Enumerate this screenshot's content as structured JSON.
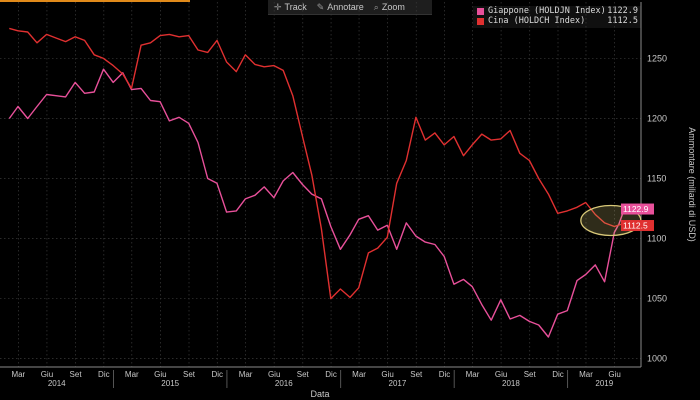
{
  "toolbar": {
    "items": [
      {
        "label": "Track",
        "icon": "crosshair-icon"
      },
      {
        "label": "Annotare",
        "icon": "pencil-icon"
      },
      {
        "label": "Zoom",
        "icon": "magnifier-icon"
      }
    ]
  },
  "legend": [
    {
      "name": "Giappone (HOLDJN Index)",
      "value": "1122.9",
      "color": "#e8509a"
    },
    {
      "name": "Cina (HOLDCH Index)",
      "value": "1112.5",
      "color": "#e03030"
    }
  ],
  "colors": {
    "background": "#000000",
    "grid": "#3a3a3a",
    "axis_text": "#c8c8c8",
    "highlight": "#d8c878"
  },
  "chart_data": {
    "type": "line",
    "xlabel": "Data",
    "ylabel": "Ammontare (miliardi di USD)",
    "ylim": [
      993,
      1297
    ],
    "y_ticks": [
      1000,
      1050,
      1100,
      1150,
      1200,
      1250
    ],
    "x_range": [
      "2014-01-01",
      "2019-08-25"
    ],
    "month_ticks": [
      "Mar",
      "Giu",
      "Set",
      "Dic",
      "Mar",
      "Giu",
      "Set",
      "Dic",
      "Mar",
      "Giu",
      "Set",
      "Dic",
      "Mar",
      "Giu",
      "Set",
      "Dic",
      "Mar",
      "Giu",
      "Set",
      "Dic",
      "Mar",
      "Giu"
    ],
    "year_labels": [
      "2014",
      "2015",
      "2016",
      "2017",
      "2018",
      "2019"
    ],
    "grid": true,
    "legend_position": "top-right",
    "series": [
      {
        "name": "Giappone (HOLDJN Index)",
        "color": "#e8509a",
        "last_value": "1122.9",
        "points": [
          [
            "2014-01-31",
            1200
          ],
          [
            "2014-02-28",
            1210
          ],
          [
            "2014-03-31",
            1200
          ],
          [
            "2014-04-30",
            1210
          ],
          [
            "2014-05-31",
            1220
          ],
          [
            "2014-06-30",
            1219
          ],
          [
            "2014-07-31",
            1218
          ],
          [
            "2014-08-31",
            1230
          ],
          [
            "2014-09-30",
            1221
          ],
          [
            "2014-10-31",
            1222
          ],
          [
            "2014-11-30",
            1241
          ],
          [
            "2014-12-31",
            1230
          ],
          [
            "2015-01-31",
            1238
          ],
          [
            "2015-02-28",
            1224
          ],
          [
            "2015-03-31",
            1225
          ],
          [
            "2015-04-30",
            1215
          ],
          [
            "2015-05-31",
            1214
          ],
          [
            "2015-06-30",
            1198
          ],
          [
            "2015-07-31",
            1201
          ],
          [
            "2015-08-31",
            1196
          ],
          [
            "2015-09-30",
            1180
          ],
          [
            "2015-10-31",
            1150
          ],
          [
            "2015-11-30",
            1146
          ],
          [
            "2015-12-31",
            1122
          ],
          [
            "2016-01-31",
            1123
          ],
          [
            "2016-02-29",
            1133
          ],
          [
            "2016-03-31",
            1136
          ],
          [
            "2016-04-30",
            1143
          ],
          [
            "2016-05-31",
            1134
          ],
          [
            "2016-06-30",
            1148
          ],
          [
            "2016-07-31",
            1155
          ],
          [
            "2016-08-31",
            1145
          ],
          [
            "2016-09-30",
            1137
          ],
          [
            "2016-10-31",
            1133
          ],
          [
            "2016-11-30",
            1110
          ],
          [
            "2016-12-31",
            1091
          ],
          [
            "2017-01-31",
            1103
          ],
          [
            "2017-02-28",
            1116
          ],
          [
            "2017-03-31",
            1119
          ],
          [
            "2017-04-30",
            1107
          ],
          [
            "2017-05-31",
            1111
          ],
          [
            "2017-06-30",
            1091
          ],
          [
            "2017-07-31",
            1113
          ],
          [
            "2017-08-31",
            1102
          ],
          [
            "2017-09-30",
            1097
          ],
          [
            "2017-10-31",
            1095
          ],
          [
            "2017-11-30",
            1085
          ],
          [
            "2017-12-31",
            1062
          ],
          [
            "2018-01-31",
            1066
          ],
          [
            "2018-02-28",
            1060
          ],
          [
            "2018-03-31",
            1045
          ],
          [
            "2018-04-30",
            1032
          ],
          [
            "2018-05-31",
            1049
          ],
          [
            "2018-06-30",
            1033
          ],
          [
            "2018-07-31",
            1036
          ],
          [
            "2018-08-31",
            1031
          ],
          [
            "2018-09-30",
            1028
          ],
          [
            "2018-10-31",
            1018
          ],
          [
            "2018-11-30",
            1037
          ],
          [
            "2018-12-31",
            1040
          ],
          [
            "2019-01-31",
            1065
          ],
          [
            "2019-02-28",
            1070
          ],
          [
            "2019-03-31",
            1078
          ],
          [
            "2019-04-30",
            1064
          ],
          [
            "2019-05-31",
            1105
          ],
          [
            "2019-06-15",
            1112
          ],
          [
            "2019-06-30",
            1122.9
          ]
        ]
      },
      {
        "name": "Cina (HOLDCH Index)",
        "color": "#e03030",
        "last_value": "1112.5",
        "points": [
          [
            "2014-01-31",
            1275
          ],
          [
            "2014-02-28",
            1273
          ],
          [
            "2014-03-31",
            1272
          ],
          [
            "2014-04-30",
            1263
          ],
          [
            "2014-05-31",
            1270
          ],
          [
            "2014-06-30",
            1267
          ],
          [
            "2014-07-31",
            1264
          ],
          [
            "2014-08-31",
            1268
          ],
          [
            "2014-09-30",
            1265
          ],
          [
            "2014-10-31",
            1253
          ],
          [
            "2014-11-30",
            1250
          ],
          [
            "2014-12-31",
            1244
          ],
          [
            "2015-01-31",
            1237
          ],
          [
            "2015-02-28",
            1225
          ],
          [
            "2015-03-31",
            1261
          ],
          [
            "2015-04-30",
            1263
          ],
          [
            "2015-05-31",
            1269
          ],
          [
            "2015-06-30",
            1270
          ],
          [
            "2015-07-31",
            1268
          ],
          [
            "2015-08-31",
            1269
          ],
          [
            "2015-09-30",
            1257
          ],
          [
            "2015-10-31",
            1255
          ],
          [
            "2015-11-30",
            1265
          ],
          [
            "2015-12-31",
            1247
          ],
          [
            "2016-01-31",
            1239
          ],
          [
            "2016-02-29",
            1253
          ],
          [
            "2016-03-31",
            1245
          ],
          [
            "2016-04-30",
            1243
          ],
          [
            "2016-05-31",
            1244
          ],
          [
            "2016-06-30",
            1240
          ],
          [
            "2016-07-31",
            1219
          ],
          [
            "2016-08-31",
            1185
          ],
          [
            "2016-09-30",
            1153
          ],
          [
            "2016-10-31",
            1108
          ],
          [
            "2016-11-30",
            1050
          ],
          [
            "2016-12-31",
            1058
          ],
          [
            "2017-01-31",
            1051
          ],
          [
            "2017-02-28",
            1059
          ],
          [
            "2017-03-31",
            1088
          ],
          [
            "2017-04-30",
            1092
          ],
          [
            "2017-05-31",
            1101
          ],
          [
            "2017-06-30",
            1146
          ],
          [
            "2017-07-31",
            1165
          ],
          [
            "2017-08-31",
            1201
          ],
          [
            "2017-09-30",
            1182
          ],
          [
            "2017-10-31",
            1188
          ],
          [
            "2017-11-30",
            1178
          ],
          [
            "2017-12-31",
            1185
          ],
          [
            "2018-01-31",
            1169
          ],
          [
            "2018-02-28",
            1178
          ],
          [
            "2018-03-31",
            1187
          ],
          [
            "2018-04-30",
            1182
          ],
          [
            "2018-05-31",
            1183
          ],
          [
            "2018-06-30",
            1190
          ],
          [
            "2018-07-31",
            1171
          ],
          [
            "2018-08-31",
            1165
          ],
          [
            "2018-09-30",
            1150
          ],
          [
            "2018-10-31",
            1137
          ],
          [
            "2018-11-30",
            1121
          ],
          [
            "2018-12-31",
            1123
          ],
          [
            "2019-01-31",
            1126
          ],
          [
            "2019-02-28",
            1130
          ],
          [
            "2019-03-31",
            1120
          ],
          [
            "2019-04-30",
            1113
          ],
          [
            "2019-05-31",
            1110
          ],
          [
            "2019-06-30",
            1112.5
          ]
        ]
      }
    ]
  }
}
